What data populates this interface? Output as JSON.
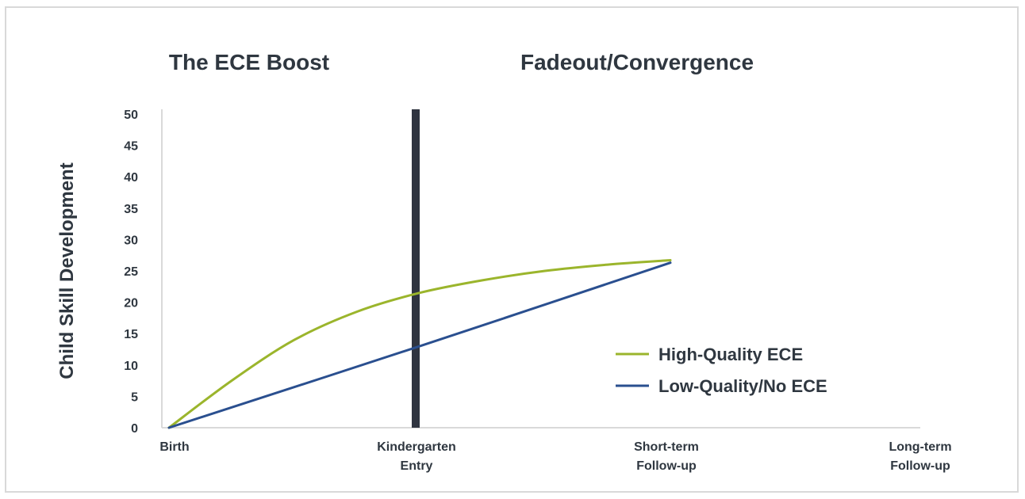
{
  "chart_data": {
    "type": "line",
    "headings": [
      "The ECE Boost",
      "Fadeout/Convergence"
    ],
    "ylabel": "Child Skill Development",
    "ylim": [
      0,
      50
    ],
    "yticks": [
      0,
      5,
      10,
      15,
      20,
      25,
      30,
      35,
      40,
      45,
      50
    ],
    "categories": [
      [
        "Birth"
      ],
      [
        "Kindergarten",
        "Entry"
      ],
      [
        "Short-term",
        "Follow-up"
      ],
      [
        "Long-term",
        "Follow-up"
      ]
    ],
    "divider_at_category": 1,
    "grid": false,
    "legend_position": "lower-right",
    "colors": {
      "text": "#2f3740",
      "axis": "#d9d9d9",
      "divider": "#2f3440"
    },
    "series": [
      {
        "name": "High-Quality ECE",
        "color": "#9bb52c",
        "x": [
          0,
          0.25,
          0.5,
          0.75,
          1,
          1.25,
          1.5,
          1.75,
          2
        ],
        "y": [
          0,
          7.5,
          14,
          18.5,
          21.5,
          23.5,
          25,
          26,
          26.7
        ]
      },
      {
        "name": "Low-Quality/No ECE",
        "color": "#2a4f8f",
        "x": [
          0,
          1,
          2
        ],
        "y": [
          0,
          13,
          26.3
        ]
      }
    ]
  }
}
